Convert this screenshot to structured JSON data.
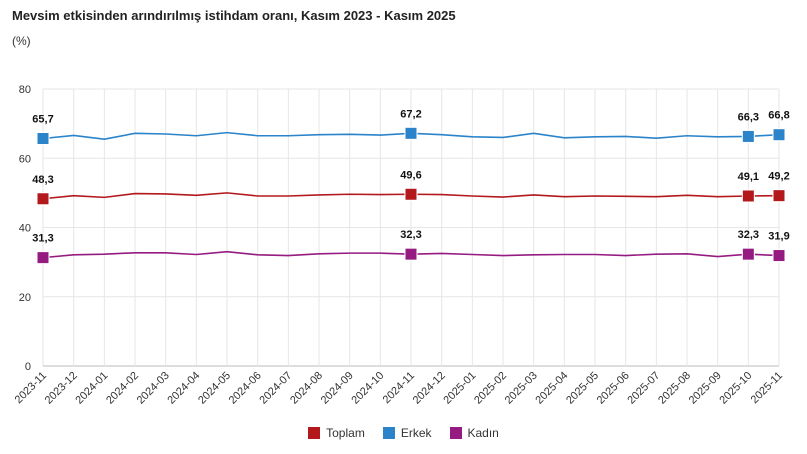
{
  "chart_data": {
    "type": "line",
    "title": "Mevsim etkisinden arındırılmış istihdam oranı, Kasım 2023 - Kasım 2025",
    "ylabel": "(%)",
    "ylim": [
      0,
      80
    ],
    "yticks": [
      0,
      20,
      40,
      60,
      80
    ],
    "grid": true,
    "legend": "bottom",
    "categories": [
      "2023-11",
      "2023-12",
      "2024-01",
      "2024-02",
      "2024-03",
      "2024-04",
      "2024-05",
      "2024-06",
      "2024-07",
      "2024-08",
      "2024-09",
      "2024-10",
      "2024-11",
      "2024-12",
      "2025-01",
      "2025-02",
      "2025-03",
      "2025-04",
      "2025-05",
      "2025-06",
      "2025-07",
      "2025-08",
      "2025-09",
      "2025-10",
      "2025-11"
    ],
    "labeled_indices": [
      0,
      12,
      23,
      24
    ],
    "series": [
      {
        "name": "Toplam",
        "color": "#b3181d",
        "values": [
          48.3,
          49.2,
          48.7,
          49.8,
          49.7,
          49.3,
          50.0,
          49.1,
          49.1,
          49.4,
          49.6,
          49.5,
          49.6,
          49.5,
          49.1,
          48.8,
          49.4,
          48.9,
          49.1,
          49.0,
          48.9,
          49.3,
          48.9,
          49.1,
          49.2
        ],
        "labels": [
          "48,3",
          "49,6",
          "49,1",
          "49,2"
        ]
      },
      {
        "name": "Erkek",
        "color": "#2b83c9",
        "values": [
          65.7,
          66.6,
          65.5,
          67.2,
          67.0,
          66.5,
          67.4,
          66.5,
          66.5,
          66.8,
          66.9,
          66.7,
          67.2,
          66.8,
          66.2,
          66.0,
          67.2,
          65.9,
          66.2,
          66.3,
          65.8,
          66.5,
          66.2,
          66.3,
          66.8
        ],
        "labels": [
          "65,7",
          "67,2",
          "66,3",
          "66,8"
        ]
      },
      {
        "name": "Kadın",
        "color": "#951b81",
        "values": [
          31.3,
          32.1,
          32.3,
          32.7,
          32.7,
          32.2,
          33.0,
          32.1,
          31.9,
          32.4,
          32.6,
          32.6,
          32.3,
          32.5,
          32.2,
          31.9,
          32.1,
          32.2,
          32.2,
          31.9,
          32.3,
          32.4,
          31.6,
          32.3,
          31.9
        ],
        "labels": [
          "31,3",
          "32,3",
          "32,3",
          "31,9"
        ]
      }
    ]
  }
}
